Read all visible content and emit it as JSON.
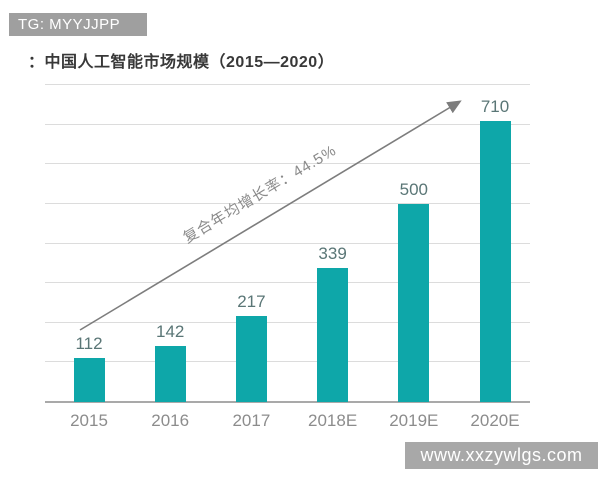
{
  "watermarks": {
    "top": "TG: MYYJJPP",
    "bottom": "www.xxzywlgs.com"
  },
  "header": {
    "title_prefix": "：",
    "title": "中国人工智能市场规模（2015—2020）"
  },
  "chart_data": {
    "type": "bar",
    "title": "中国人工智能市场规模（2015—2020）",
    "categories": [
      "2015",
      "2016",
      "2017",
      "2018E",
      "2019E",
      "2020E"
    ],
    "values": [
      112,
      142,
      217,
      339,
      500,
      710
    ],
    "xlabel": "",
    "ylabel": "",
    "ylim": [
      0,
      800
    ],
    "gridline_interval": 100,
    "grid": true,
    "legend": "none",
    "annotation": {
      "text": "复合年均增长率：44.5%",
      "cagr_percent": 44.5,
      "style": "diagonal-arrow-bottom-left-to-top-right"
    },
    "bar_color": "#0ea7a9",
    "value_label_color": "#5a7676",
    "axis_label_color": "#8c8c8c",
    "gridline_color": "#dcdcdc",
    "arrow_color": "#7d7d7d"
  }
}
